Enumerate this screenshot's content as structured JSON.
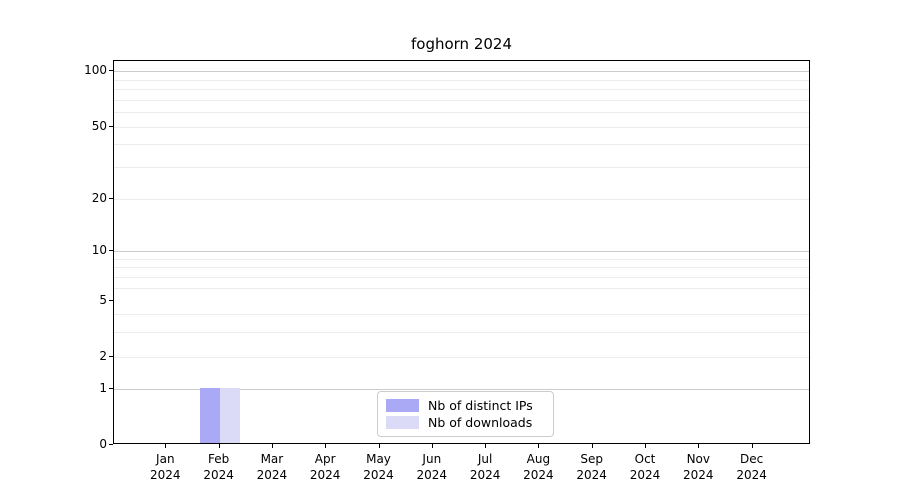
{
  "chart_data": {
    "type": "bar",
    "title": "foghorn 2024",
    "months": [
      "Jan",
      "Feb",
      "Mar",
      "Apr",
      "May",
      "Jun",
      "Jul",
      "Aug",
      "Sep",
      "Oct",
      "Nov",
      "Dec"
    ],
    "year": "2024",
    "categories": [
      "Jan 2024",
      "Feb 2024",
      "Mar 2024",
      "Apr 2024",
      "May 2024",
      "Jun 2024",
      "Jul 2024",
      "Aug 2024",
      "Sep 2024",
      "Oct 2024",
      "Nov 2024",
      "Dec 2024"
    ],
    "series": [
      {
        "name": "Nb of distinct IPs",
        "color": "#a9a9f5",
        "values": [
          0,
          1,
          0,
          0,
          0,
          0,
          0,
          0,
          0,
          0,
          0,
          0
        ]
      },
      {
        "name": "Nb of downloads",
        "color": "#dbdbf8",
        "values": [
          0,
          1,
          0,
          0,
          0,
          0,
          0,
          0,
          0,
          0,
          0,
          0
        ]
      }
    ],
    "y_ticks": [
      0,
      1,
      2,
      5,
      10,
      20,
      50,
      100
    ],
    "y_major_grid_values": [
      1,
      10,
      100
    ],
    "y_minor_grid_values": [
      2,
      3,
      4,
      6,
      7,
      8,
      9,
      20,
      30,
      40,
      50,
      60,
      70,
      80,
      90
    ],
    "scale": "symlog",
    "ylim": [
      0,
      100
    ],
    "grid": true,
    "legend_position": "lower center"
  },
  "colors": {
    "bar_distinct_ips": "#a9a9f5",
    "bar_downloads": "#dbdbf8",
    "major_grid": "#cbcbcb",
    "minor_grid": "#ececec",
    "spine": "#000000",
    "legend_border": "#cccccc"
  }
}
